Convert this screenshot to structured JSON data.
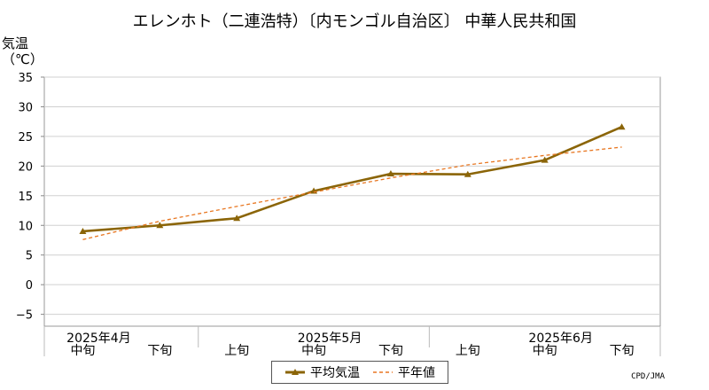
{
  "title": "エレンホト（二連浩特）〔内モンゴル自治区〕 中華人民共和国",
  "credit": "CPD/JMA",
  "chart_data": {
    "type": "line",
    "ylabel_line1": "気温",
    "ylabel_line2": "（℃）",
    "ylim": [
      -7,
      35
    ],
    "yticks": [
      35,
      30,
      25,
      20,
      15,
      10,
      5,
      0,
      -5
    ],
    "ytick_labels": [
      "35",
      "30",
      "25",
      "20",
      "15",
      "10",
      "5",
      "0",
      "−5"
    ],
    "grid": true,
    "legend_placement": "bottom-center",
    "x_labels": [
      "中旬",
      "下旬",
      "上旬",
      "中旬",
      "下旬",
      "上旬",
      "中旬",
      "下旬"
    ],
    "month_labels": [
      {
        "label": "2025年4月",
        "index": 0
      },
      {
        "label": "2025年5月",
        "index": 3
      },
      {
        "label": "2025年6月",
        "index": 6
      }
    ],
    "month_separators_after": [
      1,
      4
    ],
    "series": [
      {
        "name": "平均気温",
        "color": "#8B6508",
        "style": "solid-marker",
        "values": [
          9.0,
          10.0,
          11.2,
          15.8,
          18.7,
          18.6,
          21.0,
          26.6
        ]
      },
      {
        "name": "平年値",
        "color": "#E87722",
        "style": "dashed",
        "values": [
          7.6,
          10.7,
          13.2,
          15.6,
          18.0,
          20.2,
          21.8,
          23.2
        ]
      }
    ]
  }
}
